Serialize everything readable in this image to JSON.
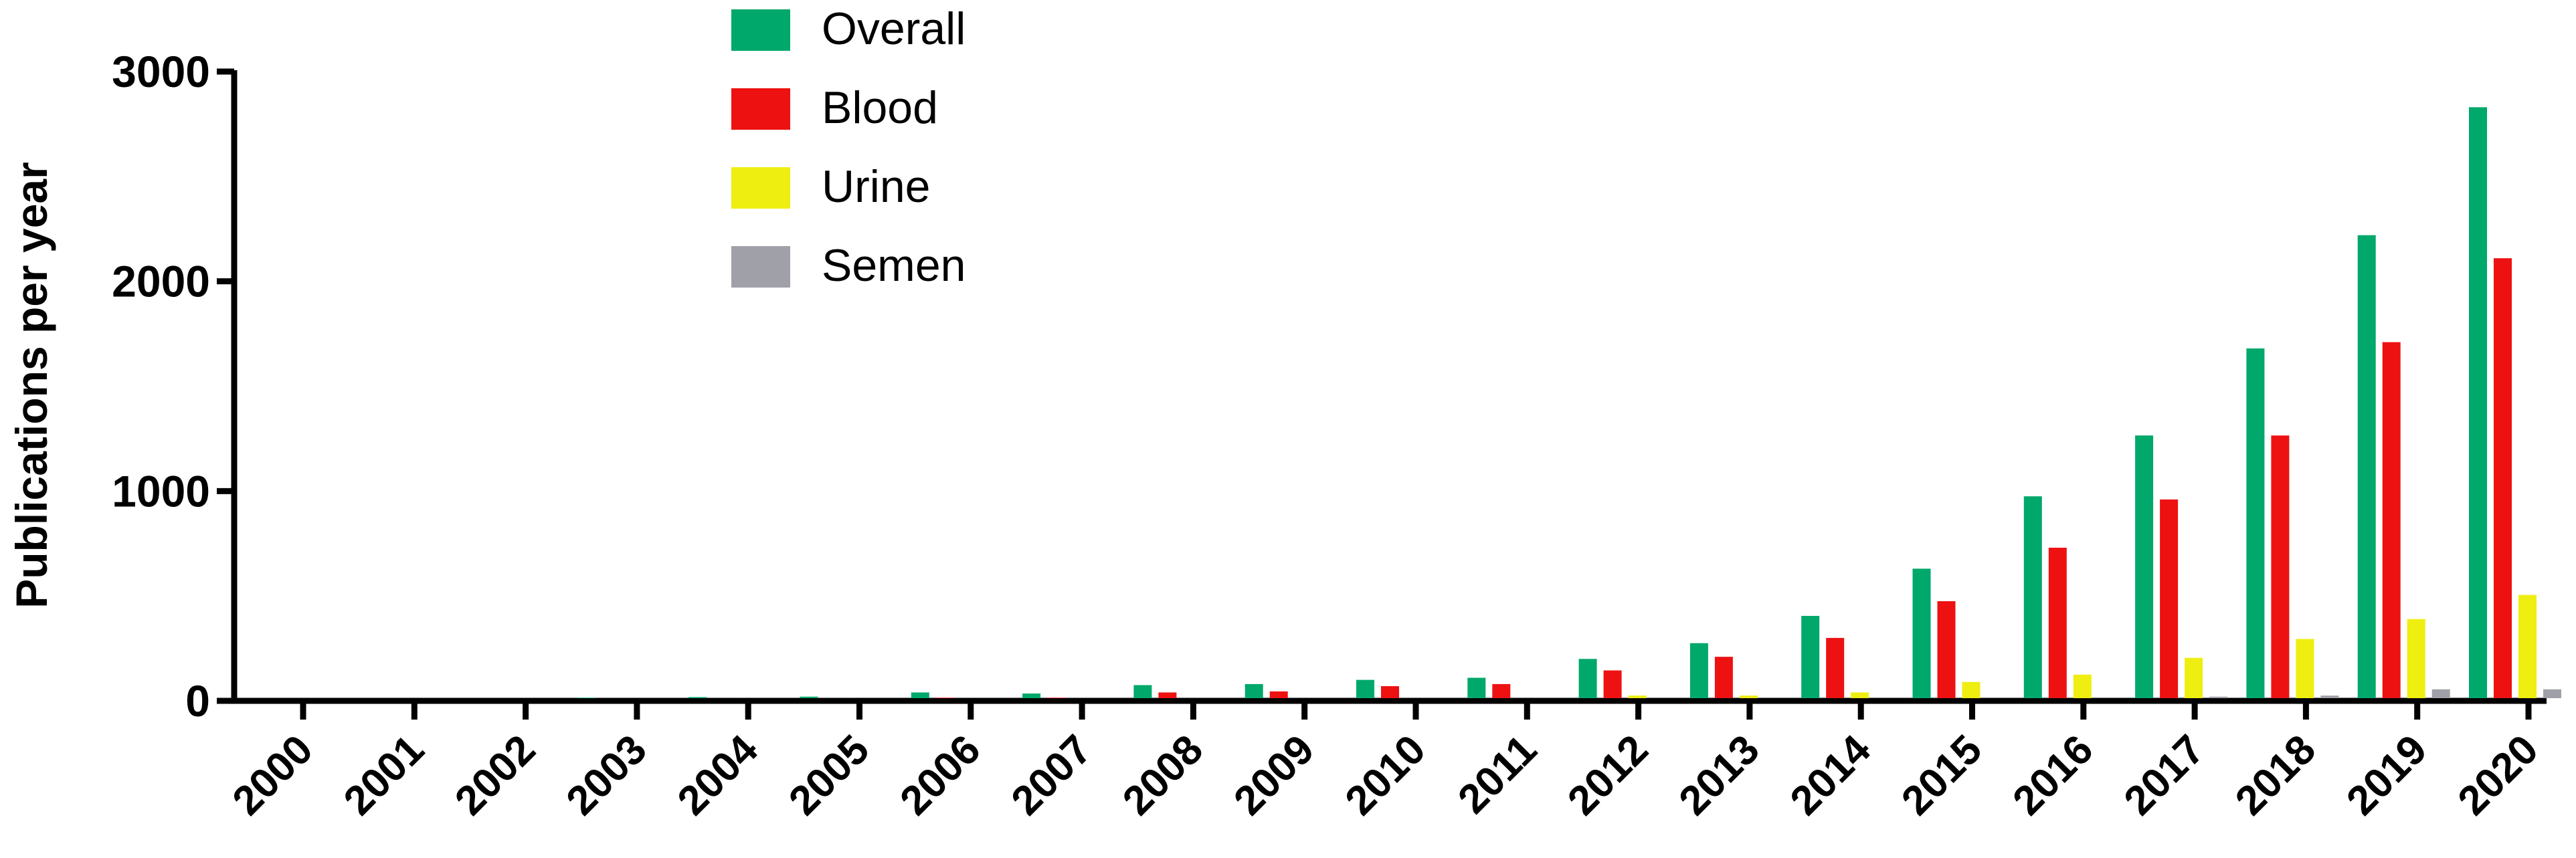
{
  "chart_data": {
    "type": "bar",
    "title": "",
    "xlabel": "",
    "ylabel": "Publications per year",
    "ylim": [
      0,
      3000
    ],
    "yticks": [
      "0",
      "1000",
      "2000",
      "3000"
    ],
    "ytick_values": [
      0,
      1000,
      2000,
      3000
    ],
    "categories": [
      "2000",
      "2001",
      "2002",
      "2003",
      "2004",
      "2005",
      "2006",
      "2007",
      "2008",
      "2009",
      "2010",
      "2011",
      "2012",
      "2013",
      "2014",
      "2015",
      "2016",
      "2017",
      "2018",
      "2019",
      "2020"
    ],
    "series": [
      {
        "name": "Overall",
        "color": "#00A86B",
        "values": [
          8,
          10,
          12,
          15,
          18,
          20,
          40,
          35,
          75,
          80,
          100,
          110,
          200,
          275,
          405,
          630,
          975,
          1265,
          1680,
          2220,
          2830
        ]
      },
      {
        "name": "Blood",
        "color": "#EE1111",
        "values": [
          3,
          4,
          5,
          8,
          9,
          10,
          15,
          15,
          40,
          45,
          70,
          80,
          145,
          210,
          300,
          475,
          730,
          960,
          1265,
          1710,
          2110
        ]
      },
      {
        "name": "Urine",
        "color": "#EEEE11",
        "values": [
          0,
          0,
          0,
          1,
          1,
          1,
          2,
          2,
          3,
          4,
          5,
          5,
          25,
          25,
          40,
          90,
          125,
          205,
          295,
          390,
          505
        ]
      },
      {
        "name": "Semen",
        "color": "#A0A0A8",
        "values": [
          0,
          0,
          0,
          0,
          0,
          0,
          0,
          0,
          0,
          0,
          0,
          0,
          3,
          3,
          5,
          8,
          10,
          20,
          25,
          55,
          55
        ]
      }
    ],
    "legend_position": "top-left",
    "grid": false
  }
}
